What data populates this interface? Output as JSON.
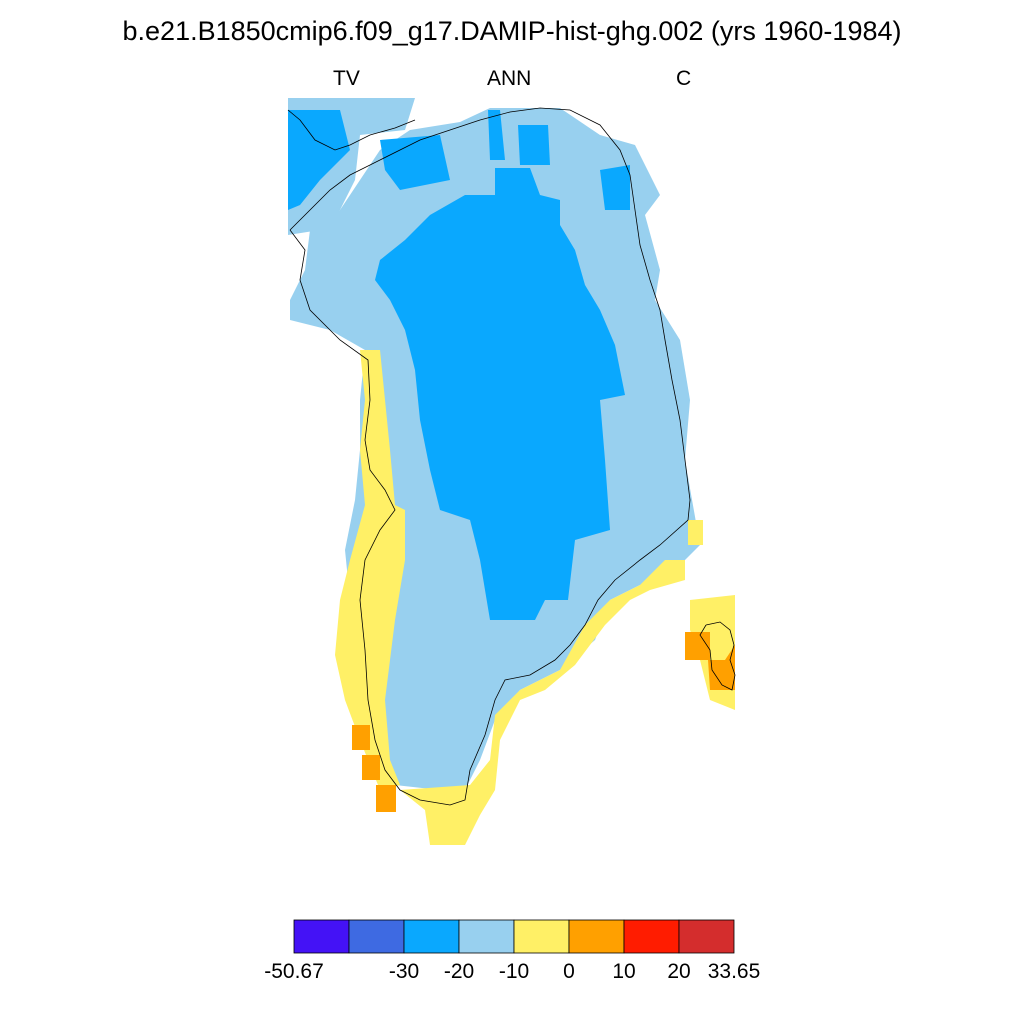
{
  "title": "b.e21.B1850cmip6.f09_g17.DAMIP-hist-ghg.002 (yrs 1960-1984)",
  "subtitles": {
    "left": "TV",
    "center": "ANN",
    "right": "C"
  },
  "colorbar": {
    "colors": [
      "#4412f6",
      "#3e6ae2",
      "#0aa8fe",
      "#98d0ef",
      "#fff066",
      "#ffa000",
      "#ff1c00",
      "#d42d2d"
    ],
    "labels": [
      "-50.67",
      "-30",
      "-20",
      "-10",
      "0",
      "10",
      "20",
      "33.65"
    ]
  },
  "map": {
    "fill_colors": {
      "outer": "#98d0ef",
      "inner": "#0aa8fe",
      "warm": "#fff066",
      "hot": "#ffa000"
    }
  }
}
